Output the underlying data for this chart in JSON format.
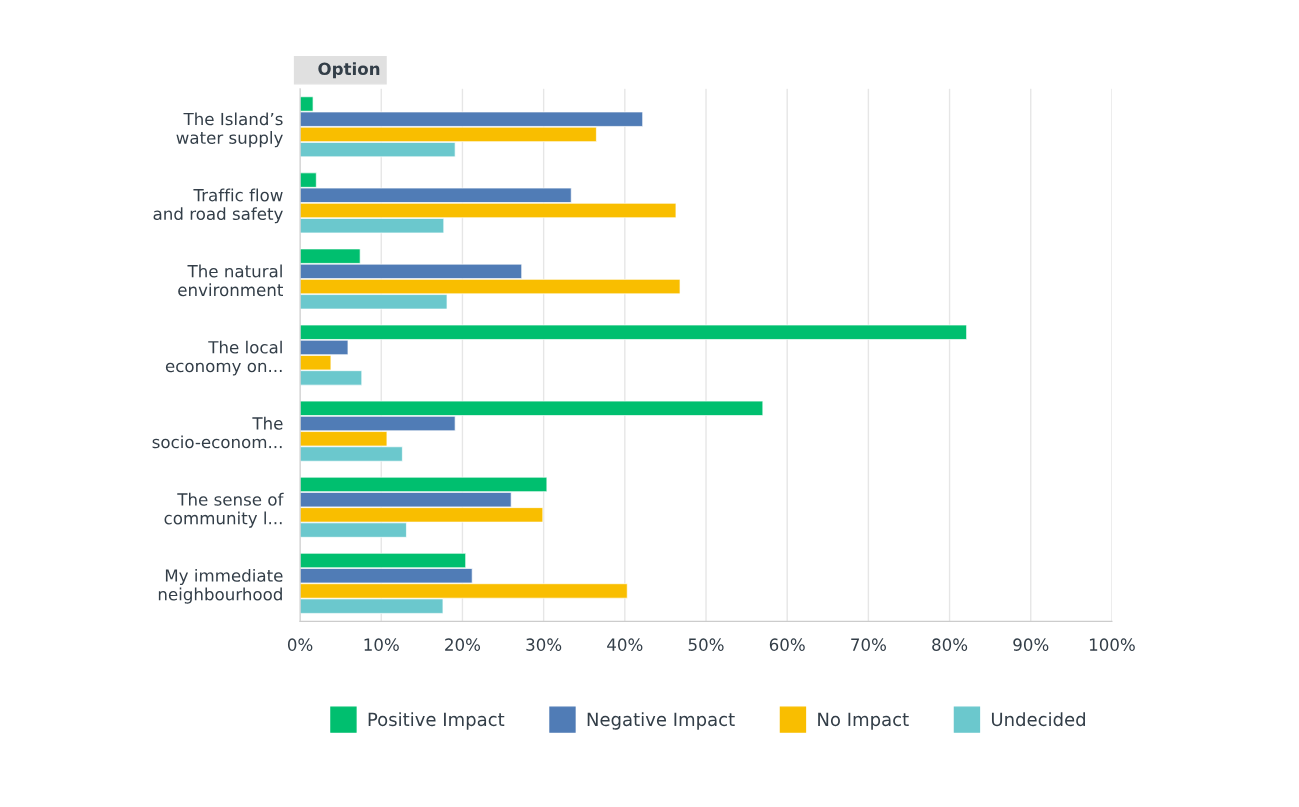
{
  "chart_data": {
    "type": "bar",
    "orientation": "horizontal",
    "title": "Option",
    "categories": [
      "The Island’s\nwater supply",
      "Traffic flow\nand road safety",
      "The natural\nenvironment",
      "The local\neconomy on...",
      "The\nsocio-econom...",
      "The sense of\ncommunity l...",
      "My immediate\nneighbourhood"
    ],
    "series": [
      {
        "name": "Positive Impact",
        "color": "#00bf6f",
        "values": [
          1.6,
          2.0,
          7.4,
          82.1,
          57.0,
          30.4,
          20.4
        ]
      },
      {
        "name": "Negative Impact",
        "color": "#507cb6",
        "values": [
          42.2,
          33.4,
          27.3,
          5.9,
          19.1,
          26.0,
          21.2
        ]
      },
      {
        "name": "No Impact",
        "color": "#f9be00",
        "values": [
          36.5,
          46.3,
          46.8,
          3.8,
          10.7,
          29.9,
          40.3
        ]
      },
      {
        "name": "Undecided",
        "color": "#6bc8cd",
        "values": [
          19.1,
          17.7,
          18.1,
          7.6,
          12.6,
          13.1,
          17.6
        ]
      }
    ],
    "xlim": [
      0,
      100
    ],
    "xticks": [
      {
        "value": 0,
        "label": "0%"
      },
      {
        "value": 10,
        "label": "10%"
      },
      {
        "value": 20,
        "label": "20%"
      },
      {
        "value": 30,
        "label": "30%"
      },
      {
        "value": 40,
        "label": "40%"
      },
      {
        "value": 50,
        "label": "50%"
      },
      {
        "value": 60,
        "label": "60%"
      },
      {
        "value": 70,
        "label": "70%"
      },
      {
        "value": 80,
        "label": "80%"
      },
      {
        "value": 90,
        "label": "90%"
      },
      {
        "value": 100,
        "label": "100%"
      }
    ],
    "grid": "x",
    "legend": "bottom",
    "marker": "square"
  }
}
